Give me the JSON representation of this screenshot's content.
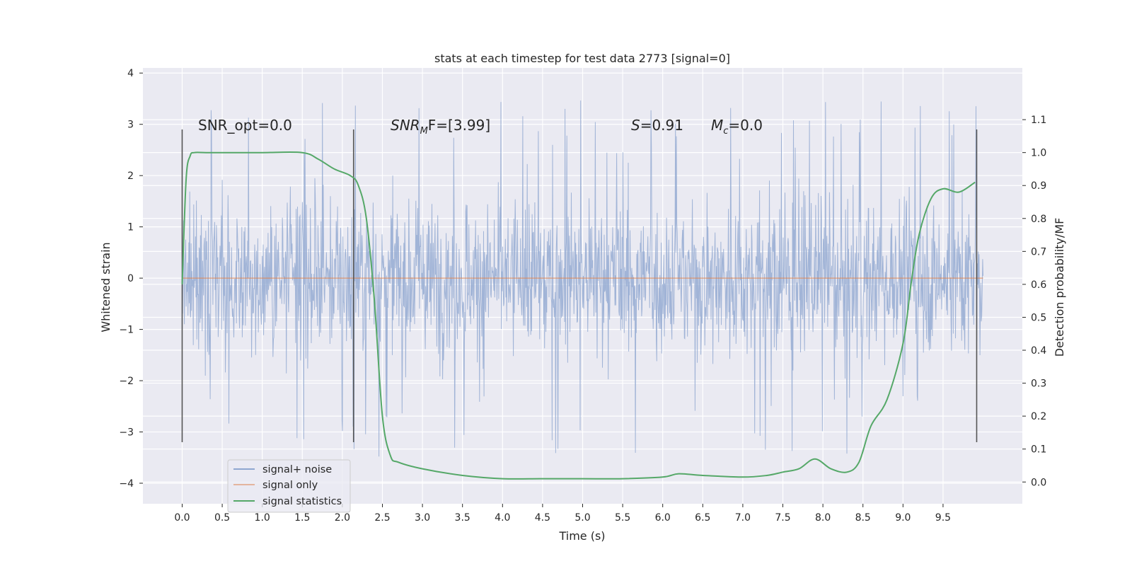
{
  "chart_data": {
    "type": "line",
    "title": "stats at each timestep for test data 2773 [signal=0]",
    "xlabel": "Time (s)",
    "ylabel": "Whitened strain",
    "y2label": "Detection probability/MF",
    "xlim": [
      -0.49,
      10.49
    ],
    "ylim": [
      -4.4,
      4.1
    ],
    "y2lim": [
      -0.066,
      1.257
    ],
    "x_ticks": [
      "0.0",
      "0.5",
      "1.0",
      "1.5",
      "2.0",
      "2.5",
      "3.0",
      "3.5",
      "4.0",
      "4.5",
      "5.0",
      "5.5",
      "6.0",
      "6.5",
      "7.0",
      "7.5",
      "8.0",
      "8.5",
      "9.0",
      "9.5"
    ],
    "y_ticks": [
      "4",
      "3",
      "2",
      "1",
      "0",
      "−1",
      "−2",
      "−3",
      "−4"
    ],
    "y2_ticks": [
      "1.1",
      "1.0",
      "0.9",
      "0.8",
      "0.7",
      "0.6",
      "0.5",
      "0.4",
      "0.3",
      "0.2",
      "0.1",
      "0.0"
    ],
    "grid": true,
    "legend_position": "lower-left",
    "annotations": {
      "snr_opt": "SNR_opt=0.0",
      "snr_mf_base": "SNR",
      "snr_mf_sub": "M",
      "snr_mf_rest": "F=[3.99]",
      "s_var": "S",
      "s_val": "=0.91",
      "mc_base": "M",
      "mc_sub": "c",
      "mc_val": "=0.0"
    },
    "vertical_markers": [
      0.0,
      2.14,
      9.92
    ],
    "series": [
      {
        "name": "signal+ noise",
        "color": "#8fa6d0",
        "description": "whitened noise, ~10000 samples over 0–10 s, approx amplitude ±1.7 with spikes to ±3.5",
        "noise_band": [
          -1.7,
          1.7
        ],
        "peaks_max": 3.5,
        "peaks_min": -3.6
      },
      {
        "name": "signal only",
        "color": "#dd8452",
        "x": [
          0.0,
          10.0
        ],
        "y": [
          0.0,
          0.0
        ]
      },
      {
        "name": "signal statistics",
        "color": "#55a868",
        "axis": "right",
        "x": [
          0.0,
          0.05,
          0.1,
          0.15,
          0.3,
          0.6,
          1.0,
          1.5,
          1.7,
          1.9,
          2.1,
          2.2,
          2.3,
          2.4,
          2.5,
          2.6,
          2.7,
          3.0,
          3.5,
          4.0,
          4.5,
          5.0,
          5.5,
          6.0,
          6.2,
          6.5,
          7.0,
          7.3,
          7.5,
          7.7,
          7.9,
          8.1,
          8.3,
          8.45,
          8.6,
          8.8,
          9.0,
          9.1,
          9.2,
          9.35,
          9.5,
          9.7,
          9.9
        ],
        "y": [
          0.6,
          0.92,
          0.99,
          1.0,
          1.0,
          1.0,
          1.0,
          1.0,
          0.98,
          0.95,
          0.93,
          0.9,
          0.8,
          0.55,
          0.2,
          0.08,
          0.06,
          0.04,
          0.02,
          0.01,
          0.01,
          0.01,
          0.01,
          0.015,
          0.025,
          0.02,
          0.015,
          0.02,
          0.03,
          0.04,
          0.07,
          0.04,
          0.03,
          0.06,
          0.17,
          0.25,
          0.42,
          0.6,
          0.75,
          0.86,
          0.89,
          0.88,
          0.91
        ]
      }
    ]
  }
}
